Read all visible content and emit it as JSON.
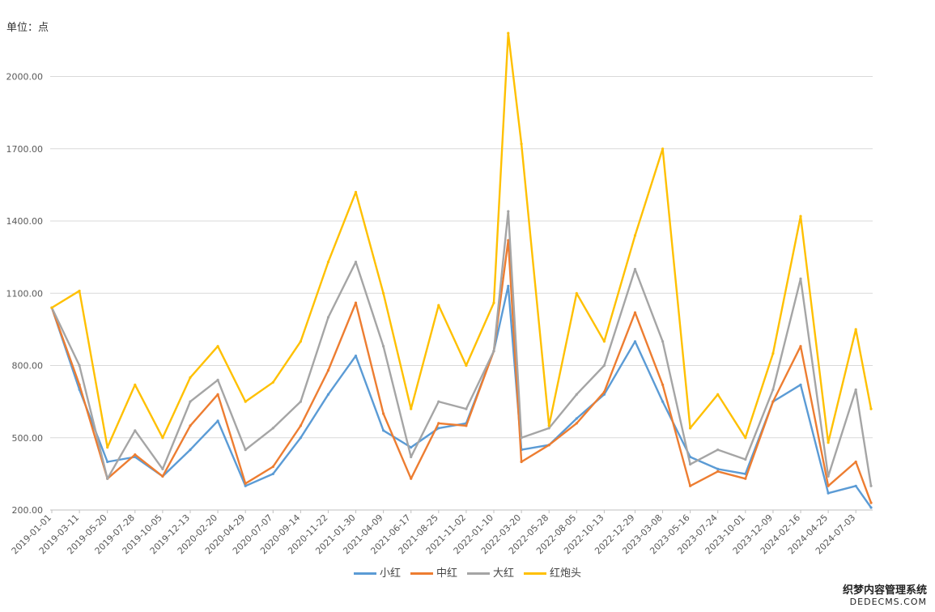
{
  "unit_label": "单位：点",
  "chart_data": {
    "type": "line",
    "title": "",
    "xlabel": "",
    "ylabel": "",
    "ylim": [
      200,
      2200
    ],
    "yticks": [
      "2000.00",
      "1700.00",
      "1400.00",
      "1100.00",
      "800.00",
      "500.00",
      "200.00"
    ],
    "xticks": [
      "2019-01-01",
      "2019-03-11",
      "2019-05-20",
      "2019-07-28",
      "2019-10-05",
      "2019-12-13",
      "2020-02-20",
      "2020-04-29",
      "2020-07-07",
      "2020-09-14",
      "2020-11-22",
      "2021-01-30",
      "2021-04-09",
      "2021-06-17",
      "2021-08-25",
      "2021-11-02",
      "2022-01-10",
      "2022-03-20",
      "2022-05-28",
      "2022-08-05",
      "2022-10-13",
      "2022-12-29",
      "2023-03-08",
      "2023-05-16",
      "2023-07-24",
      "2023-10-01",
      "2023-12-09",
      "2024-02-16",
      "2024-04-25",
      "2024-07-03"
    ],
    "grid": true,
    "legend_position": "bottom",
    "x": [
      "2019-01-01",
      "2019-03-11",
      "2019-05-20",
      "2019-07-28",
      "2019-10-05",
      "2019-12-13",
      "2020-02-20",
      "2020-04-29",
      "2020-07-07",
      "2020-09-14",
      "2020-11-22",
      "2021-01-30",
      "2021-04-09",
      "2021-06-17",
      "2021-08-25",
      "2021-11-02",
      "2022-01-10",
      "2022-02-15",
      "2022-03-20",
      "2022-05-28",
      "2022-08-05",
      "2022-10-13",
      "2022-12-29",
      "2023-03-08",
      "2023-05-16",
      "2023-07-24",
      "2023-10-01",
      "2023-12-09",
      "2024-02-16",
      "2024-04-25",
      "2024-07-03",
      "2024-08-10"
    ],
    "series": [
      {
        "name": "小红",
        "color": "#5B9BD5",
        "values": [
          1040,
          700,
          400,
          420,
          340,
          450,
          570,
          300,
          350,
          500,
          680,
          840,
          530,
          460,
          540,
          560,
          860,
          1130,
          450,
          470,
          580,
          680,
          900,
          650,
          420,
          370,
          350,
          650,
          720,
          270,
          300,
          210
        ]
      },
      {
        "name": "中红",
        "color": "#ED7D31",
        "values": [
          1040,
          720,
          330,
          430,
          340,
          550,
          680,
          310,
          380,
          550,
          780,
          1060,
          600,
          330,
          560,
          550,
          860,
          1320,
          400,
          470,
          560,
          690,
          1020,
          720,
          300,
          360,
          330,
          650,
          880,
          300,
          400,
          230
        ]
      },
      {
        "name": "大红",
        "color": "#A5A5A5",
        "values": [
          1040,
          800,
          330,
          530,
          370,
          650,
          740,
          450,
          540,
          650,
          1000,
          1230,
          880,
          420,
          650,
          620,
          860,
          1440,
          500,
          540,
          680,
          800,
          1200,
          900,
          390,
          450,
          410,
          700,
          1160,
          340,
          700,
          300
        ]
      },
      {
        "name": "红炮头",
        "color": "#FFC000",
        "values": [
          1040,
          1110,
          460,
          720,
          500,
          750,
          880,
          650,
          730,
          900,
          1230,
          1520,
          1100,
          620,
          1050,
          800,
          1060,
          2180,
          1720,
          550,
          1100,
          900,
          1340,
          1700,
          540,
          680,
          500,
          850,
          1420,
          480,
          950,
          620
        ]
      }
    ]
  },
  "watermark": {
    "cn": "织梦内容管理系统",
    "en": "DEDECMS.COM"
  }
}
